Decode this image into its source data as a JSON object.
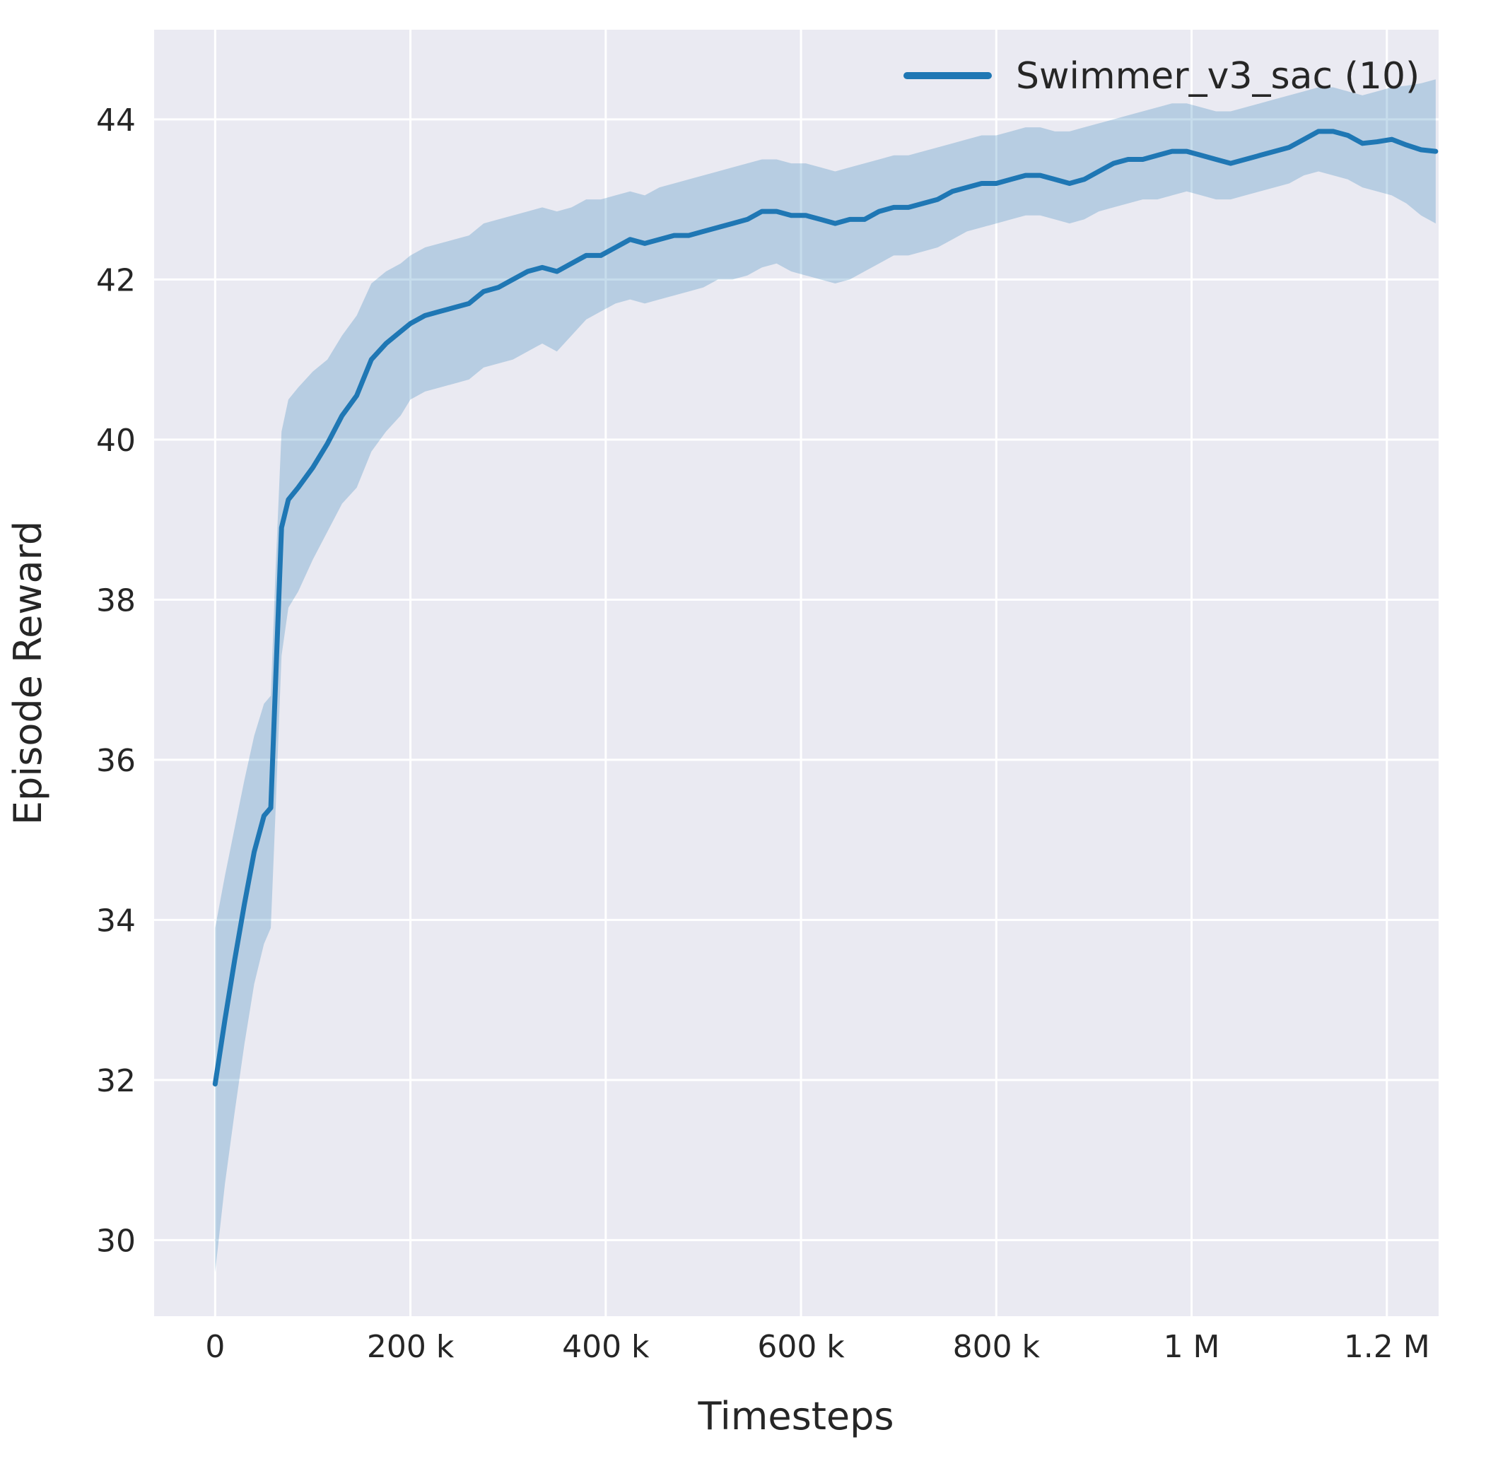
{
  "figure": {
    "background": "#ffffff",
    "axes_background": "#eaeaf2",
    "grid_color": "#ffffff",
    "text_color": "#262626"
  },
  "chart_data": {
    "type": "line",
    "title": "",
    "xlabel": "Timesteps",
    "ylabel": "Episode Reward",
    "xlim": [
      -62500,
      1253000
    ],
    "ylim": [
      29.05,
      45.12
    ],
    "grid": true,
    "legend": {
      "position": "upper right",
      "entries": [
        {
          "label": "Swimmer_v3_sac (10)",
          "color": "#1f77b4"
        }
      ]
    },
    "x_ticks": [
      {
        "value": 0,
        "label": "0"
      },
      {
        "value": 200000,
        "label": "200 k"
      },
      {
        "value": 400000,
        "label": "400 k"
      },
      {
        "value": 600000,
        "label": "600 k"
      },
      {
        "value": 800000,
        "label": "800 k"
      },
      {
        "value": 1000000,
        "label": "1 M"
      },
      {
        "value": 1200000,
        "label": "1.2 M"
      }
    ],
    "y_ticks": [
      {
        "value": 30,
        "label": "30"
      },
      {
        "value": 32,
        "label": "32"
      },
      {
        "value": 34,
        "label": "34"
      },
      {
        "value": 36,
        "label": "36"
      },
      {
        "value": 38,
        "label": "38"
      },
      {
        "value": 40,
        "label": "40"
      },
      {
        "value": 42,
        "label": "42"
      },
      {
        "value": 44,
        "label": "44"
      }
    ],
    "series": [
      {
        "name": "Swimmer_v3_sac (10)",
        "color": "#1f77b4",
        "band_alpha": 0.25,
        "x": [
          0,
          10000,
          20000,
          30000,
          40000,
          50000,
          57000,
          62000,
          68000,
          75000,
          85000,
          100000,
          115000,
          130000,
          145000,
          160000,
          175000,
          190000,
          200000,
          215000,
          230000,
          245000,
          260000,
          275000,
          290000,
          305000,
          320000,
          335000,
          350000,
          365000,
          380000,
          395000,
          410000,
          425000,
          440000,
          455000,
          470000,
          485000,
          500000,
          515000,
          530000,
          545000,
          560000,
          575000,
          590000,
          605000,
          620000,
          635000,
          650000,
          665000,
          680000,
          695000,
          710000,
          725000,
          740000,
          755000,
          770000,
          785000,
          800000,
          815000,
          830000,
          845000,
          860000,
          875000,
          890000,
          905000,
          920000,
          935000,
          950000,
          965000,
          980000,
          995000,
          1010000,
          1025000,
          1040000,
          1055000,
          1070000,
          1085000,
          1100000,
          1115000,
          1130000,
          1145000,
          1160000,
          1175000,
          1190000,
          1205000,
          1220000,
          1235000,
          1250000
        ],
        "mean": [
          31.95,
          32.75,
          33.5,
          34.2,
          34.85,
          35.3,
          35.4,
          37.0,
          38.9,
          39.25,
          39.4,
          39.65,
          39.95,
          40.3,
          40.55,
          41.0,
          41.2,
          41.35,
          41.45,
          41.55,
          41.6,
          41.65,
          41.7,
          41.85,
          41.9,
          42.0,
          42.1,
          42.15,
          42.1,
          42.2,
          42.3,
          42.3,
          42.4,
          42.5,
          42.45,
          42.5,
          42.55,
          42.55,
          42.6,
          42.65,
          42.7,
          42.75,
          42.85,
          42.85,
          42.8,
          42.8,
          42.75,
          42.7,
          42.75,
          42.75,
          42.85,
          42.9,
          42.9,
          42.95,
          43.0,
          43.1,
          43.15,
          43.2,
          43.2,
          43.25,
          43.3,
          43.3,
          43.25,
          43.2,
          43.25,
          43.35,
          43.45,
          43.5,
          43.5,
          43.55,
          43.6,
          43.6,
          43.55,
          43.5,
          43.45,
          43.5,
          43.55,
          43.6,
          43.65,
          43.75,
          43.85,
          43.85,
          43.8,
          43.7,
          43.72,
          43.75,
          43.68,
          43.62,
          43.6
        ],
        "lower": [
          29.6,
          30.7,
          31.6,
          32.45,
          33.2,
          33.7,
          33.9,
          35.4,
          37.3,
          37.9,
          38.1,
          38.5,
          38.85,
          39.2,
          39.4,
          39.85,
          40.1,
          40.3,
          40.5,
          40.6,
          40.65,
          40.7,
          40.75,
          40.9,
          40.95,
          41.0,
          41.1,
          41.2,
          41.1,
          41.3,
          41.5,
          41.6,
          41.7,
          41.75,
          41.7,
          41.75,
          41.8,
          41.85,
          41.9,
          42.0,
          42.0,
          42.05,
          42.15,
          42.2,
          42.1,
          42.05,
          42.0,
          41.95,
          42.0,
          42.1,
          42.2,
          42.3,
          42.3,
          42.35,
          42.4,
          42.5,
          42.6,
          42.65,
          42.7,
          42.75,
          42.8,
          42.8,
          42.75,
          42.7,
          42.75,
          42.85,
          42.9,
          42.95,
          43.0,
          43.0,
          43.05,
          43.1,
          43.05,
          43.0,
          43.0,
          43.05,
          43.1,
          43.15,
          43.2,
          43.3,
          43.35,
          43.3,
          43.25,
          43.15,
          43.1,
          43.05,
          42.95,
          42.8,
          42.7
        ],
        "upper": [
          33.9,
          34.55,
          35.15,
          35.75,
          36.3,
          36.7,
          36.8,
          38.4,
          40.1,
          40.5,
          40.65,
          40.85,
          41.0,
          41.3,
          41.55,
          41.95,
          42.1,
          42.2,
          42.3,
          42.4,
          42.45,
          42.5,
          42.55,
          42.7,
          42.75,
          42.8,
          42.85,
          42.9,
          42.85,
          42.9,
          43.0,
          43.0,
          43.05,
          43.1,
          43.05,
          43.15,
          43.2,
          43.25,
          43.3,
          43.35,
          43.4,
          43.45,
          43.5,
          43.5,
          43.45,
          43.45,
          43.4,
          43.35,
          43.4,
          43.45,
          43.5,
          43.55,
          43.55,
          43.6,
          43.65,
          43.7,
          43.75,
          43.8,
          43.8,
          43.85,
          43.9,
          43.9,
          43.85,
          43.85,
          43.9,
          43.95,
          44.0,
          44.05,
          44.1,
          44.15,
          44.2,
          44.2,
          44.15,
          44.1,
          44.1,
          44.15,
          44.2,
          44.25,
          44.3,
          44.35,
          44.4,
          44.4,
          44.35,
          44.3,
          44.35,
          44.4,
          44.42,
          44.45,
          44.5
        ]
      }
    ]
  }
}
